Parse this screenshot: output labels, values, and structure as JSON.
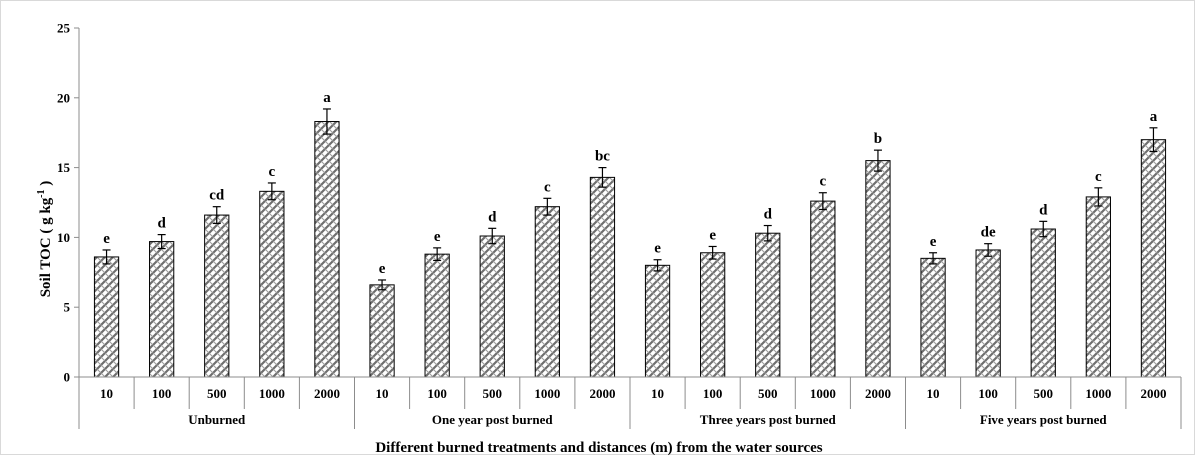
{
  "chart_data": {
    "type": "bar",
    "ylabel": "Soil TOC ( g kg",
    "ylabel_sup": "-1",
    "ylabel_close": " )",
    "xlabel": "Different burned treatments and distances (m) from the water sources",
    "ylim": [
      0,
      25
    ],
    "yticks": [
      "0",
      "5",
      "10",
      "15",
      "20",
      "25"
    ],
    "grid": false,
    "legend": "none",
    "groups": [
      {
        "name": "Unburned",
        "categories": [
          "10",
          "100",
          "500",
          "1000",
          "2000"
        ],
        "values": [
          8.6,
          9.7,
          11.6,
          13.3,
          18.3
        ],
        "errors": [
          0.5,
          0.5,
          0.6,
          0.6,
          0.9
        ],
        "letters": [
          "e",
          "d",
          "cd",
          "c",
          "a"
        ]
      },
      {
        "name": "One year post burned",
        "categories": [
          "10",
          "100",
          "500",
          "1000",
          "2000"
        ],
        "values": [
          6.6,
          8.8,
          10.1,
          12.2,
          14.3
        ],
        "errors": [
          0.35,
          0.45,
          0.55,
          0.6,
          0.7
        ],
        "letters": [
          "e",
          "e",
          "d",
          "c",
          "bc"
        ]
      },
      {
        "name": "Three years post burned",
        "categories": [
          "10",
          "100",
          "500",
          "1000",
          "2000"
        ],
        "values": [
          8.0,
          8.9,
          10.3,
          12.6,
          15.5
        ],
        "errors": [
          0.4,
          0.45,
          0.55,
          0.6,
          0.75
        ],
        "letters": [
          "e",
          "e",
          "d",
          "c",
          "b"
        ]
      },
      {
        "name": "Five years post burned",
        "categories": [
          "10",
          "100",
          "500",
          "1000",
          "2000"
        ],
        "values": [
          8.5,
          9.1,
          10.6,
          12.9,
          17.0
        ],
        "errors": [
          0.4,
          0.45,
          0.55,
          0.65,
          0.85
        ],
        "letters": [
          "e",
          "de",
          "d",
          "c",
          "a"
        ]
      }
    ],
    "bar_fill": "#7f7f7f",
    "bar_stroke": "#000000"
  }
}
